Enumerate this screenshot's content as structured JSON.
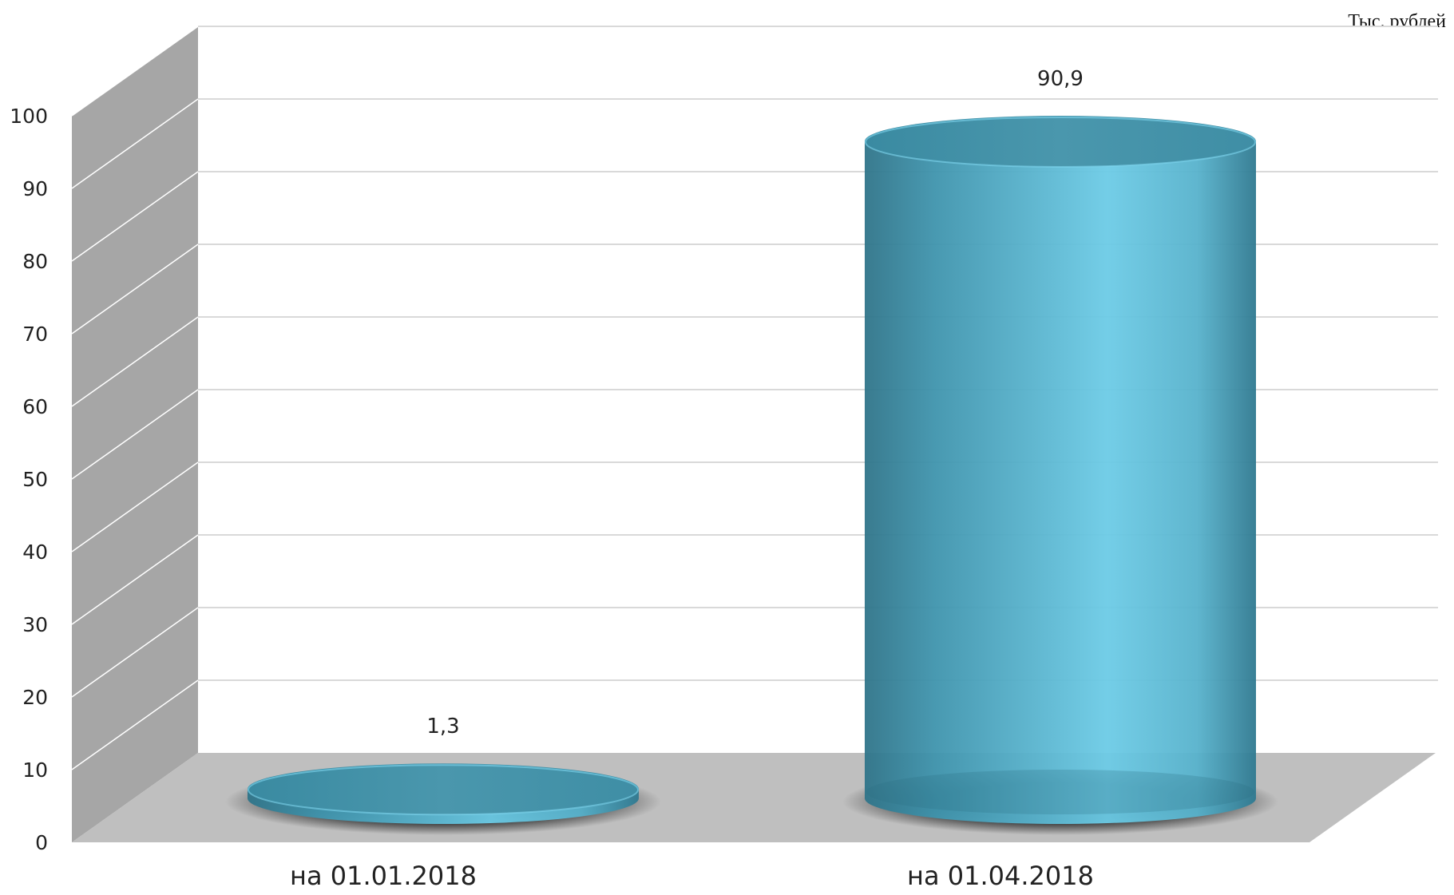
{
  "unit_label": "Тыс. рублей",
  "chart_data": {
    "type": "bar",
    "style": "3d-cylinder",
    "categories": [
      "на 01.01.2018",
      "на 01.04.2018"
    ],
    "values": [
      1.3,
      90.9
    ],
    "data_labels": [
      "1,3",
      "90,9"
    ],
    "yticks": [
      "0",
      "10",
      "20",
      "30",
      "40",
      "50",
      "60",
      "70",
      "80",
      "90",
      "100"
    ],
    "ylim": [
      0,
      100
    ],
    "grid": true,
    "colors": {
      "bar": "#4fb3cf",
      "wall": "#a6a6a6",
      "floor": "#bfbfbf",
      "grid": "#d9d9d9"
    }
  }
}
